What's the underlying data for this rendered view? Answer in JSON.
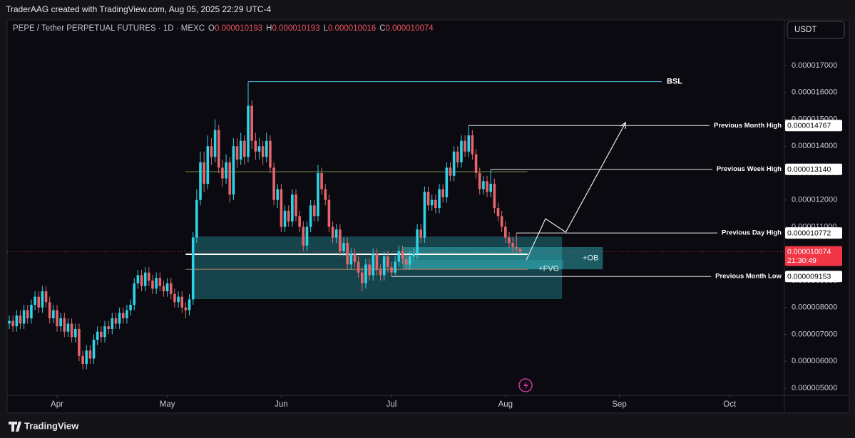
{
  "header": {
    "watermark": "TraderAAG created with TradingView.com, Aug 05, 2025 22:29 UTC-4",
    "brand": "TradingView"
  },
  "chart_data": {
    "type": "candlestick",
    "title": "PEPE / Tether PERPETUAL FUTURES · 1D · MEXC",
    "ohlc_labels": [
      {
        "key": "O",
        "label": "0.000010193"
      },
      {
        "key": "H",
        "label": "0.000010193"
      },
      {
        "key": "L",
        "label": "0.000010016"
      },
      {
        "key": "C",
        "label": "0.000010074"
      }
    ],
    "currency": "USDT",
    "up_color": "#2fd3e6",
    "down_color": "#e8646c",
    "xlim": [
      -0.58,
      210.9
    ],
    "ylim": [
      4.735e-06,
      1.8642e-05
    ],
    "xticks": [
      {
        "value": 13,
        "label": "Apr"
      },
      {
        "value": 43,
        "label": "May"
      },
      {
        "value": 74,
        "label": "Jun"
      },
      {
        "value": 104,
        "label": "Jul"
      },
      {
        "value": 135,
        "label": "Aug"
      },
      {
        "value": 166,
        "label": "Sep"
      },
      {
        "value": 196,
        "label": "Oct"
      }
    ],
    "yticks": [
      {
        "value": 5e-06,
        "label": "0.000005000"
      },
      {
        "value": 6e-06,
        "label": "0.000006000"
      },
      {
        "value": 7e-06,
        "label": "0.000007000"
      },
      {
        "value": 8e-06,
        "label": "0.000008000"
      },
      {
        "value": 9e-06,
        "label": "0.000009000"
      },
      {
        "value": 1e-05,
        "label": "0.000010000"
      },
      {
        "value": 1.1e-05,
        "label": "0.000011000"
      },
      {
        "value": 1.2e-05,
        "label": "0.000012000"
      },
      {
        "value": 1.3e-05,
        "label": "0.000013000"
      },
      {
        "value": 1.4e-05,
        "label": "0.000014000"
      },
      {
        "value": 1.5e-05,
        "label": "0.000015000"
      },
      {
        "value": 1.6e-05,
        "label": "0.000016000"
      },
      {
        "value": 1.7e-05,
        "label": "0.000017000"
      }
    ],
    "open": [
      7.4e-06,
      7.5e-06,
      7.3e-06,
      7.7e-06,
      7.4e-06,
      7.9e-06,
      7.6e-06,
      8.1e-06,
      8.4e-06,
      8e-06,
      8.6e-06,
      8.2e-06,
      7.6e-06,
      7.9e-06,
      7.3e-06,
      7.6e-06,
      7.1e-06,
      7.4e-06,
      6.9e-06,
      7.2e-06,
      6.2e-06,
      5.9e-06,
      6.4e-06,
      6.1e-06,
      6.8e-06,
      7.1e-06,
      6.9e-06,
      7.3e-06,
      7.2e-06,
      7.6e-06,
      7.4e-06,
      7.8e-06,
      7.6e-06,
      7.9e-06,
      8.1e-06,
      8.9e-06,
      9.2e-06,
      8.8e-06,
      9.3e-06,
      9e-06,
      8.7e-06,
      9.1e-06,
      8.8e-06,
      8.6e-06,
      8.9e-06,
      8.5e-06,
      8.2e-06,
      8.4e-06,
      8e-06,
      7.9e-06,
      8.3e-06,
      1.06e-05,
      1.2e-05,
      1.34e-05,
      1.26e-05,
      1.4e-05,
      1.36e-05,
      1.46e-05,
      1.32e-05,
      1.28e-05,
      1.34e-05,
      1.22e-05,
      1.4e-05,
      1.35e-05,
      1.42e-05,
      1.36e-05,
      1.55e-05,
      1.42e-05,
      1.38e-05,
      1.4e-05,
      1.36e-05,
      1.42e-05,
      1.32e-05,
      1.2e-05,
      1.24e-05,
      1.1e-05,
      1.16e-05,
      1.12e-05,
      1.22e-05,
      1.14e-05,
      1.1e-05,
      1.03e-05,
      1.1e-05,
      1.18e-05,
      1.14e-05,
      1.3e-05,
      1.24e-05,
      1.2e-05,
      1.1e-05,
      1.06e-05,
      1.09e-05,
      1.01e-05,
      1.04e-05,
      9.6e-06,
      1e-05,
      9.7e-06,
      9.3e-06,
      8.9e-06,
      9.6e-06,
      9.2e-06,
      1e-05,
      9.4e-06,
      9.2e-06,
      9.9e-06,
      9.5e-06,
      9.3e-06,
      9.7e-06,
      1.01e-05,
      9.8e-06,
      9.6e-06,
      9.9e-06,
      1e-05,
      1.09e-05,
      1.06e-05,
      1.23e-05,
      1.18e-05,
      1.2e-05,
      1.17e-05,
      1.24e-05,
      1.21e-05,
      1.32e-05,
      1.29e-05,
      1.38e-05,
      1.34e-05,
      1.42e-05,
      1.38e-05,
      1.44e-05,
      1.37e-05,
      1.3e-05,
      1.24e-05,
      1.27e-05,
      1.23e-05,
      1.26e-05,
      1.17e-05,
      1.14e-05,
      1.1e-05,
      1.06e-05,
      1.04e-05,
      1.025e-05,
      1.0193e-05
    ],
    "high": [
      7.7e-06,
      7.7e-06,
      7.9e-06,
      7.9e-06,
      8.1e-06,
      8.1e-06,
      8.3e-06,
      8.6e-06,
      8.6e-06,
      8.8e-06,
      8.8e-06,
      8.4e-06,
      8.1e-06,
      8.1e-06,
      7.8e-06,
      7.8e-06,
      7.6e-06,
      7.6e-06,
      7.4e-06,
      7.4e-06,
      6.4e-06,
      6.6e-06,
      6.6e-06,
      7e-06,
      7.3e-06,
      7.3e-06,
      7.5e-06,
      7.5e-06,
      7.8e-06,
      7.8e-06,
      8e-06,
      8e-06,
      8.1e-06,
      8.3e-06,
      9.1e-06,
      9.4e-06,
      9.4e-06,
      9.5e-06,
      9.5e-06,
      9.2e-06,
      9.3e-06,
      9.3e-06,
      9e-06,
      9.1e-06,
      9.1e-06,
      8.7e-06,
      8.6e-06,
      8.6e-06,
      8.2e-06,
      8.5e-06,
      1.08e-05,
      1.24e-05,
      1.38e-05,
      1.38e-05,
      1.44e-05,
      1.43e-05,
      1.5e-05,
      1.48e-05,
      1.35e-05,
      1.37e-05,
      1.36e-05,
      1.43e-05,
      1.43e-05,
      1.45e-05,
      1.44e-05,
      1.64e-05,
      1.57e-05,
      1.45e-05,
      1.43e-05,
      1.42e-05,
      1.45e-05,
      1.44e-05,
      1.34e-05,
      1.26e-05,
      1.26e-05,
      1.18e-05,
      1.18e-05,
      1.24e-05,
      1.24e-05,
      1.16e-05,
      1.12e-05,
      1.12e-05,
      1.2e-05,
      1.2e-05,
      1.33e-05,
      1.32e-05,
      1.26e-05,
      1.22e-05,
      1.12e-05,
      1.11e-05,
      1.11e-05,
      1.06e-05,
      1.06e-05,
      1.02e-05,
      1.02e-05,
      9.9e-06,
      9.5e-06,
      9.8e-06,
      9.8e-06,
      1.02e-05,
      1.02e-05,
      9.6e-06,
      1.01e-05,
      1.01e-05,
      9.7e-06,
      9.9e-06,
      1.03e-05,
      1.03e-05,
      1e-05,
      1.01e-05,
      1.02e-05,
      1.11e-05,
      1.11e-05,
      1.25e-05,
      1.25e-05,
      1.22e-05,
      1.22e-05,
      1.26e-05,
      1.26e-05,
      1.34e-05,
      1.34e-05,
      1.4e-05,
      1.4e-05,
      1.44e-05,
      1.44e-05,
      1.4767e-05,
      1.46e-05,
      1.39e-05,
      1.32e-05,
      1.29e-05,
      1.29e-05,
      1.314e-05,
      1.28e-05,
      1.19e-05,
      1.16e-05,
      1.12e-05,
      1.08e-05,
      1.06e-05,
      1.0772e-05,
      1.0193e-05
    ],
    "low": [
      7.2e-06,
      7.1e-06,
      7.1e-06,
      7.2e-06,
      7.2e-06,
      7.4e-06,
      7.4e-06,
      7.9e-06,
      7.8e-06,
      7.8e-06,
      8e-06,
      7.4e-06,
      7.4e-06,
      7.1e-06,
      7.1e-06,
      6.9e-06,
      6.9e-06,
      6.7e-06,
      6.7e-06,
      6e-06,
      5.7e-06,
      5.7e-06,
      5.9e-06,
      5.9e-06,
      6.6e-06,
      6.7e-06,
      6.7e-06,
      7e-06,
      7e-06,
      7.2e-06,
      7.2e-06,
      7.4e-06,
      7.4e-06,
      7.7e-06,
      7.9e-06,
      8.7e-06,
      8.6e-06,
      8.6e-06,
      8.8e-06,
      8.5e-06,
      8.5e-06,
      8.6e-06,
      8.4e-06,
      8.4e-06,
      8.3e-06,
      8e-06,
      8e-06,
      7.8e-06,
      7.6e-06,
      7.7e-06,
      8.1e-06,
      1.04e-05,
      1.18e-05,
      1.23e-05,
      1.24e-05,
      1.33e-05,
      1.34e-05,
      1.3e-05,
      1.25e-05,
      1.26e-05,
      1.19e-05,
      1.2e-05,
      1.32e-05,
      1.33e-05,
      1.33e-05,
      1.34e-05,
      1.39e-05,
      1.35e-05,
      1.35e-05,
      1.33e-05,
      1.34e-05,
      1.3e-05,
      1.18e-05,
      1.17e-05,
      1.08e-05,
      1.08e-05,
      1.1e-05,
      1.1e-05,
      1.12e-05,
      1.08e-05,
      1.01e-05,
      1.01e-05,
      1.08e-05,
      1.12e-05,
      1.12e-05,
      1.22e-05,
      1.18e-05,
      1.08e-05,
      1.04e-05,
      1.04e-05,
      9.9e-06,
      9.9e-06,
      9.4e-06,
      9.4e-06,
      9.5e-06,
      9.1e-06,
      8.6e-06,
      8.7e-06,
      9e-06,
      9e-06,
      9.2e-06,
      9e-06,
      9e-06,
      9.3e-06,
      9.153e-06,
      9.2e-06,
      9.5e-06,
      9.6e-06,
      9.4e-06,
      9.4e-06,
      9.7e-06,
      9.8e-06,
      1.04e-05,
      1.04e-05,
      1.16e-05,
      1.16e-05,
      1.15e-05,
      1.15e-05,
      1.19e-05,
      1.19e-05,
      1.27e-05,
      1.27e-05,
      1.32e-05,
      1.32e-05,
      1.36e-05,
      1.36e-05,
      1.35e-05,
      1.28e-05,
      1.22e-05,
      1.22e-05,
      1.21e-05,
      1.21e-05,
      1.15e-05,
      1.12e-05,
      1.08e-05,
      1.04e-05,
      1.02e-05,
      1.005e-05,
      1.005e-05,
      1.0016e-05
    ],
    "close": [
      7.5e-06,
      7.3e-06,
      7.7e-06,
      7.4e-06,
      7.9e-06,
      7.6e-06,
      8.1e-06,
      8.4e-06,
      8e-06,
      8.6e-06,
      8.2e-06,
      7.6e-06,
      7.9e-06,
      7.3e-06,
      7.6e-06,
      7.1e-06,
      7.4e-06,
      6.9e-06,
      7.2e-06,
      6.2e-06,
      5.9e-06,
      6.4e-06,
      6.1e-06,
      6.8e-06,
      7.1e-06,
      6.9e-06,
      7.3e-06,
      7.2e-06,
      7.6e-06,
      7.4e-06,
      7.8e-06,
      7.6e-06,
      7.9e-06,
      8.1e-06,
      8.9e-06,
      9.2e-06,
      8.8e-06,
      9.3e-06,
      9e-06,
      8.7e-06,
      9.1e-06,
      8.8e-06,
      8.6e-06,
      8.9e-06,
      8.5e-06,
      8.2e-06,
      8.4e-06,
      8e-06,
      7.9e-06,
      8.3e-06,
      1.06e-05,
      1.2e-05,
      1.34e-05,
      1.26e-05,
      1.4e-05,
      1.36e-05,
      1.46e-05,
      1.32e-05,
      1.28e-05,
      1.34e-05,
      1.22e-05,
      1.4e-05,
      1.35e-05,
      1.42e-05,
      1.36e-05,
      1.55e-05,
      1.42e-05,
      1.38e-05,
      1.4e-05,
      1.36e-05,
      1.42e-05,
      1.32e-05,
      1.2e-05,
      1.24e-05,
      1.1e-05,
      1.16e-05,
      1.12e-05,
      1.22e-05,
      1.14e-05,
      1.1e-05,
      1.03e-05,
      1.1e-05,
      1.18e-05,
      1.14e-05,
      1.3e-05,
      1.24e-05,
      1.2e-05,
      1.1e-05,
      1.06e-05,
      1.09e-05,
      1.01e-05,
      1.04e-05,
      9.6e-06,
      1e-05,
      9.7e-06,
      9.3e-06,
      8.9e-06,
      9.6e-06,
      9.2e-06,
      1e-05,
      9.4e-06,
      9.2e-06,
      9.9e-06,
      9.5e-06,
      9.3e-06,
      9.7e-06,
      1.01e-05,
      9.8e-06,
      9.6e-06,
      9.9e-06,
      1e-05,
      1.09e-05,
      1.06e-05,
      1.23e-05,
      1.18e-05,
      1.2e-05,
      1.17e-05,
      1.24e-05,
      1.21e-05,
      1.32e-05,
      1.29e-05,
      1.38e-05,
      1.34e-05,
      1.42e-05,
      1.38e-05,
      1.44e-05,
      1.37e-05,
      1.3e-05,
      1.24e-05,
      1.27e-05,
      1.23e-05,
      1.26e-05,
      1.17e-05,
      1.14e-05,
      1.1e-05,
      1.06e-05,
      1.04e-05,
      1.025e-05,
      1.0193e-05,
      1.0074e-05
    ],
    "bsl": {
      "name": "BSL",
      "value": 1.64e-05,
      "color": "#4fc3d9"
    },
    "levels": [
      {
        "name": "Previous Month High",
        "value": 1.4767e-05,
        "label": "0.000014767"
      },
      {
        "name": "Previous Week High",
        "value": 1.314e-05,
        "label": "0.000013140"
      },
      {
        "name": "Previous Day High",
        "value": 1.0772e-05,
        "label": "0.000010772"
      },
      {
        "name": "Previous Month Low",
        "value": 9.153e-06,
        "label": "0.000009153"
      }
    ],
    "last_price": {
      "value": 1.0074e-05,
      "label": "0.000010074",
      "countdown": "21:30:49",
      "color": "#f23645"
    },
    "zones": [
      {
        "top": 1.064e-05,
        "bottom": 8.31e-06,
        "start": 49.9,
        "end": 150.4,
        "color": "rgba(38,140,150,0.45)"
      },
      {
        "label": "+OB",
        "top": 1.0245e-05,
        "bottom": 9.42e-06,
        "start": 107.1,
        "end": 161.5,
        "color": "rgba(50,190,200,0.45)"
      },
      {
        "label": "+FVG",
        "top": 9.77e-06,
        "bottom": 9.42e-06,
        "start": 106.2,
        "end": 150.8,
        "color": "rgba(50,190,200,0.25)"
      }
    ],
    "hlines": [
      {
        "value": 9.98e-06,
        "start": 48,
        "end": 141,
        "color": "#ffffff"
      },
      {
        "value": 1.305e-05,
        "start": 48,
        "end": 141,
        "color": "#7c9a4a"
      },
      {
        "value": 9.42e-06,
        "start": 48,
        "end": 141,
        "color": "#c08060"
      }
    ],
    "projection": {
      "x": [
        140.7,
        145.9,
        151.4,
        167.7
      ],
      "y": [
        9.77e-06,
        1.13e-05,
        1.08e-05,
        1.488e-05
      ]
    }
  }
}
